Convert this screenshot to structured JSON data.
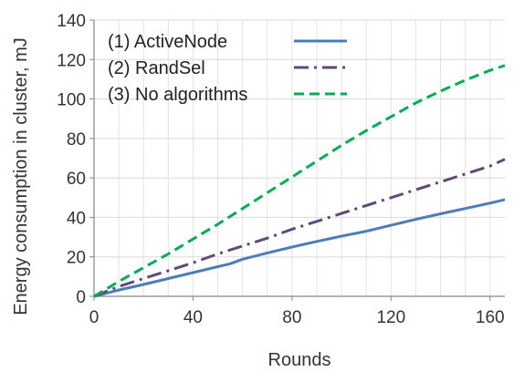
{
  "chart_data": {
    "type": "line",
    "xlabel": "Rounds",
    "ylabel": "Energy consumption in cluster, mJ",
    "xlim": [
      0,
      166
    ],
    "ylim": [
      0,
      140
    ],
    "xticks": [
      0,
      40,
      80,
      120,
      160
    ],
    "yticks": [
      0,
      20,
      40,
      60,
      80,
      100,
      120,
      140
    ],
    "grid": true,
    "legend_position": "top-left",
    "series": [
      {
        "name": "(1) ActiveNode",
        "color": "#4A7EBB",
        "style": "solid",
        "x": [
          0,
          10,
          20,
          30,
          40,
          50,
          55,
          60,
          70,
          80,
          90,
          100,
          110,
          120,
          130,
          140,
          150,
          160,
          166
        ],
        "y": [
          0,
          3.2,
          6.0,
          9.0,
          12.0,
          15.0,
          16.5,
          18.8,
          22.0,
          25.0,
          27.8,
          30.5,
          33.0,
          36.0,
          39.0,
          41.8,
          44.5,
          47.2,
          49.0
        ]
      },
      {
        "name": "(2) RandSel",
        "color": "#60497A",
        "style": "dashdot",
        "x": [
          0,
          10,
          20,
          30,
          40,
          50,
          60,
          70,
          80,
          90,
          100,
          110,
          120,
          130,
          140,
          150,
          160,
          166
        ],
        "y": [
          0,
          5.0,
          9.0,
          13.0,
          17.0,
          21.5,
          25.5,
          29.5,
          34.0,
          38.0,
          42.0,
          46.0,
          50.0,
          54.0,
          58.0,
          62.0,
          66.0,
          69.5
        ]
      },
      {
        "name": "(3) No algorithms",
        "color": "#00B050",
        "style": "dashed",
        "x": [
          0,
          10,
          20,
          30,
          40,
          50,
          60,
          70,
          80,
          90,
          100,
          110,
          120,
          130,
          140,
          150,
          160,
          166
        ],
        "y": [
          0,
          7.5,
          14.5,
          21.5,
          29.0,
          36.5,
          44.5,
          52.5,
          60.5,
          68.5,
          76.5,
          84.0,
          91.0,
          98.0,
          104.0,
          109.5,
          114.5,
          117.0
        ]
      }
    ]
  }
}
